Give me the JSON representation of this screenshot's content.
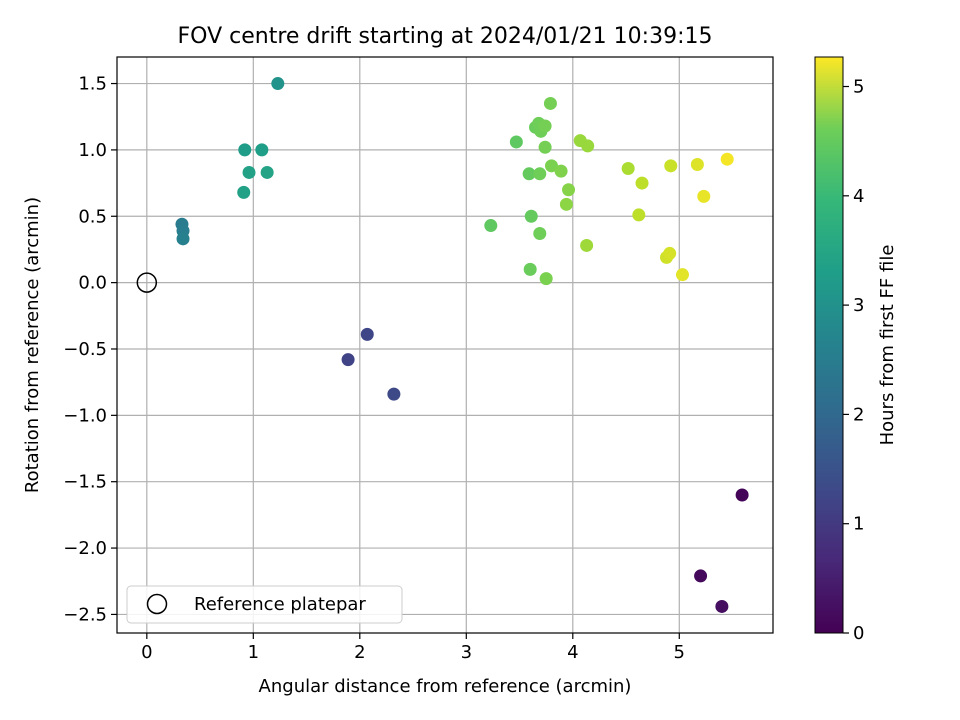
{
  "chart_data": {
    "type": "scatter",
    "title": "FOV centre drift starting at 2024/01/21 10:39:15",
    "xlabel": "Angular distance from reference (arcmin)",
    "ylabel": "Rotation from reference (arcmin)",
    "xlim": [
      -0.28,
      5.88
    ],
    "ylim": [
      -2.64,
      1.7
    ],
    "x_ticks": [
      0,
      1,
      2,
      3,
      4,
      5
    ],
    "x_tick_labels": [
      "0",
      "1",
      "2",
      "3",
      "4",
      "5"
    ],
    "y_ticks": [
      -2.5,
      -2.0,
      -1.5,
      -1.0,
      -0.5,
      0.0,
      0.5,
      1.0,
      1.5
    ],
    "y_tick_labels": [
      "−2.5",
      "−2.0",
      "−1.5",
      "−1.0",
      "−0.5",
      "0.0",
      "0.5",
      "1.0",
      "1.5"
    ],
    "grid": true,
    "legend": {
      "placement": "lower-left",
      "entries": [
        "Reference platepar"
      ]
    },
    "reference_point": {
      "name": "Reference platepar",
      "x": 0.0,
      "y": 0.0
    },
    "colorbar": {
      "label": "Hours from first FF file",
      "colormap": "viridis",
      "range": [
        0,
        5.27
      ],
      "ticks": [
        0,
        1,
        2,
        3,
        4,
        5
      ],
      "tick_labels": [
        "0",
        "1",
        "2",
        "3",
        "4",
        "5"
      ]
    },
    "points": [
      {
        "x": 5.59,
        "y": -1.6,
        "h": 0.05
      },
      {
        "x": 5.2,
        "y": -2.21,
        "h": 0.12
      },
      {
        "x": 5.4,
        "y": -2.44,
        "h": 0.2
      },
      {
        "x": 1.89,
        "y": -0.58,
        "h": 1.05
      },
      {
        "x": 2.07,
        "y": -0.39,
        "h": 1.1
      },
      {
        "x": 2.32,
        "y": -0.84,
        "h": 1.15
      },
      {
        "x": 0.33,
        "y": 0.44,
        "h": 2.2
      },
      {
        "x": 0.34,
        "y": 0.39,
        "h": 2.25
      },
      {
        "x": 0.34,
        "y": 0.33,
        "h": 2.3
      },
      {
        "x": 1.23,
        "y": 1.5,
        "h": 2.7
      },
      {
        "x": 0.92,
        "y": 1.0,
        "h": 2.9
      },
      {
        "x": 1.08,
        "y": 1.0,
        "h": 2.95
      },
      {
        "x": 0.96,
        "y": 0.83,
        "h": 3.0
      },
      {
        "x": 1.13,
        "y": 0.83,
        "h": 3.05
      },
      {
        "x": 0.91,
        "y": 0.68,
        "h": 3.0
      },
      {
        "x": 3.23,
        "y": 0.43,
        "h": 3.95
      },
      {
        "x": 3.47,
        "y": 1.06,
        "h": 3.95
      },
      {
        "x": 3.59,
        "y": 0.82,
        "h": 4.0
      },
      {
        "x": 3.61,
        "y": 0.5,
        "h": 4.0
      },
      {
        "x": 3.6,
        "y": 0.1,
        "h": 4.05
      },
      {
        "x": 3.65,
        "y": 1.17,
        "h": 4.05
      },
      {
        "x": 3.68,
        "y": 1.2,
        "h": 4.1
      },
      {
        "x": 3.7,
        "y": 1.14,
        "h": 4.1
      },
      {
        "x": 3.74,
        "y": 1.18,
        "h": 4.15
      },
      {
        "x": 3.69,
        "y": 0.82,
        "h": 4.1
      },
      {
        "x": 3.74,
        "y": 1.02,
        "h": 4.15
      },
      {
        "x": 3.69,
        "y": 0.37,
        "h": 4.1
      },
      {
        "x": 3.75,
        "y": 0.03,
        "h": 4.2
      },
      {
        "x": 3.79,
        "y": 1.35,
        "h": 4.15
      },
      {
        "x": 3.8,
        "y": 0.88,
        "h": 4.2
      },
      {
        "x": 3.89,
        "y": 0.84,
        "h": 4.25
      },
      {
        "x": 3.96,
        "y": 0.7,
        "h": 4.3
      },
      {
        "x": 3.94,
        "y": 0.59,
        "h": 4.35
      },
      {
        "x": 4.07,
        "y": 1.07,
        "h": 4.45
      },
      {
        "x": 4.14,
        "y": 1.03,
        "h": 4.45
      },
      {
        "x": 4.13,
        "y": 0.28,
        "h": 4.5
      },
      {
        "x": 4.52,
        "y": 0.86,
        "h": 4.6
      },
      {
        "x": 4.65,
        "y": 0.75,
        "h": 4.75
      },
      {
        "x": 4.62,
        "y": 0.51,
        "h": 4.75
      },
      {
        "x": 4.92,
        "y": 0.88,
        "h": 4.85
      },
      {
        "x": 4.88,
        "y": 0.19,
        "h": 4.9
      },
      {
        "x": 4.91,
        "y": 0.22,
        "h": 4.95
      },
      {
        "x": 5.17,
        "y": 0.89,
        "h": 5.0
      },
      {
        "x": 5.23,
        "y": 0.65,
        "h": 5.1
      },
      {
        "x": 5.03,
        "y": 0.06,
        "h": 5.05
      },
      {
        "x": 5.45,
        "y": 0.93,
        "h": 5.2
      }
    ]
  }
}
